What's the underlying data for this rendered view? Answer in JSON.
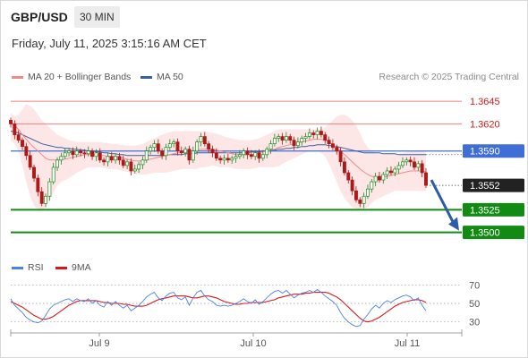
{
  "header": {
    "symbol": "GBP/USD",
    "timeframe": "30 MIN",
    "datetime": "Friday, July 11, 2025 3:15:16 AM CET"
  },
  "legend": {
    "ma20_label": "MA 20 + Bollinger Bands",
    "ma50_label": "MA 50",
    "rsi_label": "RSI",
    "rsi9ma_label": "9MA",
    "credit": "Research © 2025 Trading Central"
  },
  "colors": {
    "ma20": "#f08a8a",
    "ma50": "#3a5fa0",
    "bollinger_fill": "#fde3e3",
    "resistance": "#f08080",
    "support": "#138a13",
    "pivot": "#3f6fd6",
    "candle": "#1f8a1f",
    "candle_down": "#b01818",
    "arrow": "#2b5ca8",
    "rsi": "#4a80e8",
    "rsi_ma": "#d81818"
  },
  "chart_data": [
    {
      "type": "candlestick",
      "x_ticks": [
        "Jul 9",
        "Jul 10",
        "Jul 11"
      ],
      "ylim": [
        1.347,
        1.366
      ],
      "levels": [
        {
          "label": "1.3645",
          "value": 1.3645,
          "kind": "resistance"
        },
        {
          "label": "1.3620",
          "value": 1.362,
          "kind": "resistance"
        },
        {
          "label": "1.3590",
          "value": 1.359,
          "kind": "pivot"
        },
        {
          "label": "1.3552",
          "value": 1.3552,
          "kind": "last_price"
        },
        {
          "label": "1.3525",
          "value": 1.3525,
          "kind": "support"
        },
        {
          "label": "1.3500",
          "value": 1.35,
          "kind": "support"
        }
      ],
      "close": [
        1.362,
        1.3608,
        1.3602,
        1.3595,
        1.3585,
        1.3572,
        1.356,
        1.3545,
        1.3532,
        1.354,
        1.3556,
        1.3572,
        1.358,
        1.3584,
        1.3588,
        1.359,
        1.3586,
        1.359,
        1.3588,
        1.3587,
        1.359,
        1.3584,
        1.3588,
        1.358,
        1.3578,
        1.3584,
        1.358,
        1.3584,
        1.358,
        1.3574,
        1.3578,
        1.3568,
        1.357,
        1.3575,
        1.358,
        1.359,
        1.3594,
        1.3598,
        1.359,
        1.3585,
        1.3594,
        1.3598,
        1.36,
        1.359,
        1.3588,
        1.3592,
        1.358,
        1.359,
        1.36,
        1.3606,
        1.3598,
        1.3592,
        1.3588,
        1.3582,
        1.358,
        1.3582,
        1.358,
        1.3582,
        1.3584,
        1.3586,
        1.359,
        1.3586,
        1.3584,
        1.3588,
        1.3582,
        1.3586,
        1.3592,
        1.3598,
        1.3604,
        1.3606,
        1.3602,
        1.3606,
        1.3602,
        1.3596,
        1.36,
        1.3604,
        1.3606,
        1.361,
        1.3608,
        1.3612,
        1.3608,
        1.3602,
        1.3598,
        1.3594,
        1.359,
        1.3578,
        1.3566,
        1.3558,
        1.3546,
        1.3536,
        1.3532,
        1.354,
        1.3548,
        1.3556,
        1.3562,
        1.3558,
        1.3564,
        1.3568,
        1.3566,
        1.357,
        1.3574,
        1.3578,
        1.358,
        1.3578,
        1.3572,
        1.3576,
        1.3566,
        1.3552
      ],
      "ma20": [
        1.3622,
        1.3618,
        1.3614,
        1.3608,
        1.3603,
        1.3598,
        1.3594,
        1.359,
        1.3586,
        1.3582,
        1.358,
        1.358,
        1.358,
        1.358,
        1.3581,
        1.3582,
        1.3583,
        1.3584,
        1.3585,
        1.3586,
        1.3586,
        1.3586,
        1.3586,
        1.3585,
        1.3585,
        1.3584,
        1.3584,
        1.3584,
        1.3583,
        1.3582,
        1.3581,
        1.358,
        1.3579,
        1.3579,
        1.3579,
        1.358,
        1.3581,
        1.3582,
        1.3583,
        1.3584,
        1.3585,
        1.3586,
        1.3587,
        1.3588,
        1.3588,
        1.3589,
        1.3589,
        1.359,
        1.3591,
        1.3592,
        1.3592,
        1.3592,
        1.3592,
        1.3591,
        1.359,
        1.3589,
        1.3588,
        1.3587,
        1.3586,
        1.3586,
        1.3586,
        1.3586,
        1.3586,
        1.3587,
        1.3588,
        1.3589,
        1.359,
        1.3591,
        1.3592,
        1.3594,
        1.3595,
        1.3596,
        1.3597,
        1.3598,
        1.3599,
        1.36,
        1.3601,
        1.3602,
        1.3603,
        1.3603,
        1.3603,
        1.3602,
        1.36,
        1.3597,
        1.3594,
        1.359,
        1.3586,
        1.3582,
        1.3578,
        1.3574,
        1.357,
        1.3567,
        1.3564,
        1.3562,
        1.3561,
        1.3561,
        1.3561,
        1.3562,
        1.3563,
        1.3564,
        1.3565,
        1.3566,
        1.3567,
        1.3568,
        1.3568,
        1.3568,
        1.3568,
        1.3567
      ],
      "ma50": [
        1.3612,
        1.3611,
        1.361,
        1.3608,
        1.3606,
        1.3604,
        1.3602,
        1.36,
        1.3598,
        1.3597,
        1.3596,
        1.3595,
        1.3594,
        1.3594,
        1.3593,
        1.3593,
        1.3592,
        1.3592,
        1.3591,
        1.3591,
        1.359,
        1.359,
        1.3589,
        1.3589,
        1.3588,
        1.3588,
        1.3587,
        1.3587,
        1.3586,
        1.3586,
        1.3585,
        1.3585,
        1.3585,
        1.3585,
        1.3585,
        1.3585,
        1.3585,
        1.3585,
        1.3585,
        1.3585,
        1.3585,
        1.3586,
        1.3586,
        1.3586,
        1.3586,
        1.3587,
        1.3587,
        1.3587,
        1.3588,
        1.3588,
        1.3588,
        1.3588,
        1.3588,
        1.3588,
        1.3588,
        1.3588,
        1.3588,
        1.3588,
        1.3588,
        1.3588,
        1.3588,
        1.3588,
        1.3589,
        1.3589,
        1.3589,
        1.359,
        1.359,
        1.3591,
        1.3591,
        1.3592,
        1.3592,
        1.3593,
        1.3593,
        1.3594,
        1.3594,
        1.3595,
        1.3595,
        1.3596,
        1.3596,
        1.3597,
        1.3597,
        1.3597,
        1.3596,
        1.3596,
        1.3595,
        1.3594,
        1.3593,
        1.3592,
        1.3591,
        1.359,
        1.3589,
        1.3588,
        1.3588,
        1.3588,
        1.3588,
        1.3588,
        1.3587,
        1.3587,
        1.3587,
        1.3587,
        1.3586,
        1.3586,
        1.3586,
        1.3586,
        1.3586,
        1.3586,
        1.3586,
        1.3586
      ],
      "bollinger_upper": [
        1.3632,
        1.3628,
        1.363,
        1.3636,
        1.3642,
        1.364,
        1.3636,
        1.363,
        1.3624,
        1.362,
        1.3616,
        1.3612,
        1.3608,
        1.3606,
        1.3604,
        1.3602,
        1.3601,
        1.36,
        1.36,
        1.36,
        1.36,
        1.36,
        1.36,
        1.36,
        1.3599,
        1.3599,
        1.3598,
        1.3598,
        1.3597,
        1.3597,
        1.3596,
        1.3596,
        1.3596,
        1.3597,
        1.3598,
        1.36,
        1.3602,
        1.3604,
        1.3606,
        1.3608,
        1.361,
        1.3611,
        1.3612,
        1.3612,
        1.3612,
        1.3612,
        1.3612,
        1.3612,
        1.3612,
        1.3612,
        1.3612,
        1.3611,
        1.361,
        1.3609,
        1.3608,
        1.3606,
        1.3605,
        1.3604,
        1.3603,
        1.3602,
        1.3602,
        1.3602,
        1.3602,
        1.3603,
        1.3604,
        1.3606,
        1.3608,
        1.361,
        1.3612,
        1.3614,
        1.3614,
        1.3614,
        1.3614,
        1.3614,
        1.3614,
        1.3614,
        1.3614,
        1.3614,
        1.3614,
        1.3614,
        1.3614,
        1.3616,
        1.362,
        1.3624,
        1.3628,
        1.363,
        1.363,
        1.3628,
        1.3624,
        1.3618,
        1.361,
        1.36,
        1.3594,
        1.359,
        1.3588,
        1.3587,
        1.3587,
        1.3587,
        1.3587,
        1.3587,
        1.3587,
        1.3588,
        1.3589,
        1.359,
        1.359,
        1.359,
        1.359,
        1.3588
      ],
      "bollinger_lower": [
        1.3602,
        1.3598,
        1.359,
        1.3574,
        1.3556,
        1.354,
        1.353,
        1.3524,
        1.3524,
        1.3528,
        1.3536,
        1.3544,
        1.3552,
        1.3556,
        1.3558,
        1.356,
        1.3563,
        1.3566,
        1.3568,
        1.357,
        1.3572,
        1.3572,
        1.3572,
        1.3572,
        1.3571,
        1.357,
        1.357,
        1.357,
        1.3569,
        1.3568,
        1.3567,
        1.3566,
        1.3565,
        1.3564,
        1.3564,
        1.3564,
        1.3565,
        1.3566,
        1.3566,
        1.3566,
        1.3566,
        1.3567,
        1.3568,
        1.3569,
        1.357,
        1.357,
        1.357,
        1.357,
        1.357,
        1.3572,
        1.3572,
        1.3573,
        1.3574,
        1.3573,
        1.3572,
        1.3572,
        1.3572,
        1.3571,
        1.357,
        1.357,
        1.357,
        1.357,
        1.357,
        1.3571,
        1.3572,
        1.3572,
        1.3572,
        1.3572,
        1.3572,
        1.3573,
        1.3576,
        1.3578,
        1.358,
        1.3582,
        1.3584,
        1.3586,
        1.3588,
        1.359,
        1.359,
        1.359,
        1.3588,
        1.3584,
        1.3576,
        1.3566,
        1.3556,
        1.3546,
        1.3538,
        1.3532,
        1.3528,
        1.3526,
        1.3526,
        1.3526,
        1.3528,
        1.3532,
        1.3536,
        1.3538,
        1.354,
        1.3542,
        1.3544,
        1.3546,
        1.3546,
        1.3546,
        1.3546,
        1.3546,
        1.3546,
        1.3546,
        1.3546,
        1.3546
      ]
    },
    {
      "type": "line",
      "name": "RSI",
      "ylim": [
        20,
        80
      ],
      "y_ticks": [
        70,
        50,
        30
      ],
      "rsi": [
        55,
        48,
        44,
        40,
        35,
        32,
        30,
        29,
        31,
        37,
        44,
        48,
        50,
        52,
        54,
        55,
        52,
        55,
        53,
        52,
        55,
        50,
        53,
        48,
        46,
        52,
        48,
        52,
        48,
        45,
        48,
        42,
        45,
        48,
        52,
        57,
        60,
        62,
        56,
        53,
        58,
        61,
        62,
        56,
        54,
        57,
        48,
        56,
        62,
        64,
        58,
        54,
        52,
        48,
        47,
        48,
        47,
        48,
        50,
        52,
        55,
        52,
        50,
        54,
        49,
        52,
        56,
        60,
        63,
        64,
        61,
        64,
        60,
        56,
        59,
        61,
        62,
        64,
        62,
        65,
        62,
        58,
        55,
        52,
        48,
        40,
        34,
        30,
        27,
        25,
        26,
        33,
        38,
        44,
        48,
        45,
        50,
        53,
        51,
        54,
        56,
        58,
        59,
        57,
        53,
        56,
        48,
        42
      ],
      "rsi_ma": [
        52,
        50,
        48,
        46,
        43,
        40,
        37,
        35,
        33,
        33,
        34,
        36,
        39,
        42,
        45,
        48,
        50,
        52,
        53,
        53,
        53,
        53,
        53,
        52,
        51,
        51,
        50,
        50,
        50,
        49,
        49,
        48,
        47,
        47,
        47,
        48,
        50,
        52,
        54,
        55,
        56,
        57,
        58,
        58,
        58,
        58,
        57,
        56,
        56,
        57,
        58,
        58,
        57,
        56,
        54,
        52,
        51,
        50,
        49,
        49,
        50,
        50,
        51,
        51,
        51,
        51,
        52,
        53,
        54,
        56,
        57,
        58,
        59,
        60,
        60,
        60,
        61,
        61,
        62,
        62,
        62,
        62,
        61,
        59,
        57,
        54,
        50,
        46,
        42,
        38,
        34,
        31,
        30,
        31,
        33,
        35,
        38,
        41,
        44,
        47,
        49,
        51,
        52,
        53,
        54,
        54,
        53,
        51
      ]
    }
  ]
}
